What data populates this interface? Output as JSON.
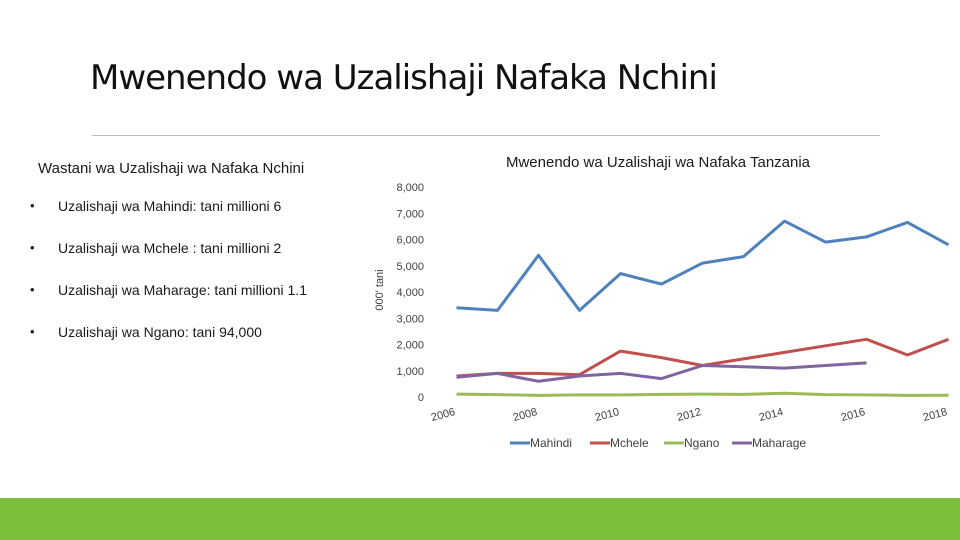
{
  "page": {
    "title": "Mwenendo wa Uzalishaji Nafaka Nchini",
    "left_heading": "Wastani wa Uzalishaji wa Nafaka Nchini",
    "bullets": [
      "Uzalishaji wa Mahindi:  tani millioni 6",
      "Uzalishaji wa Mchele : tani millioni 2",
      "Uzalishaji wa Maharage: tani millioni 1.1",
      "Uzalishaji wa Ngano: tani 94,000"
    ],
    "bullet_glyph": "•"
  },
  "colors": {
    "Mahindi": "#4f81bd",
    "Mchele": "#c0504d",
    "Ngano": "#9bbb59",
    "Maharage": "#8064a2",
    "footer": "#7bbf3a"
  },
  "chart_data": {
    "type": "line",
    "title": "Mwenendo wa Uzalishaji wa Nafaka Tanzania",
    "ylabel": "000' tani",
    "xlabel": "",
    "ylim": [
      0,
      8000
    ],
    "yticks": [
      0,
      1000,
      2000,
      3000,
      4000,
      5000,
      6000,
      7000,
      8000
    ],
    "ytick_labels": [
      "0",
      "1,000",
      "2,000",
      "3,000",
      "4,000",
      "5,000",
      "6,000",
      "7,000",
      "8,000"
    ],
    "xlim": [
      2006,
      2018
    ],
    "xticks": [
      2006,
      2008,
      2010,
      2012,
      2014,
      2016,
      2018
    ],
    "xtick_labels": [
      "2006",
      "2008",
      "2010",
      "2012",
      "2014",
      "2016",
      "2018"
    ],
    "grid": false,
    "legend": "bottom",
    "series": [
      {
        "name": "Mahindi",
        "x": [
          2006.5,
          2007.5,
          2008.5,
          2009.5,
          2010.5,
          2011.5,
          2012.5,
          2013.5,
          2014.5,
          2015.5,
          2016.5,
          2017.5,
          2018.5
        ],
        "values": [
          3400,
          3300,
          5400,
          3300,
          4700,
          4300,
          5100,
          5350,
          6700,
          5900,
          6100,
          6650,
          5800
        ]
      },
      {
        "name": "Mchele",
        "x": [
          2006.5,
          2007.5,
          2008.5,
          2009.5,
          2010.5,
          2011.5,
          2012.5,
          2013.5,
          2014.5,
          2015.5,
          2016.5,
          2017.5,
          2018.5
        ],
        "values": [
          800,
          900,
          900,
          850,
          1750,
          1500,
          1200,
          1450,
          1700,
          1950,
          2200,
          1600,
          2200
        ]
      },
      {
        "name": "Ngano",
        "x": [
          2006.5,
          2007.5,
          2008.5,
          2009.5,
          2010.5,
          2011.5,
          2012.5,
          2013.5,
          2014.5,
          2015.5,
          2016.5,
          2017.5,
          2018.5
        ],
        "values": [
          110,
          90,
          60,
          80,
          80,
          100,
          110,
          100,
          140,
          90,
          80,
          60,
          70
        ]
      },
      {
        "name": "Maharage",
        "x": [
          2006.5,
          2007.5,
          2008.5,
          2009.5,
          2010.5,
          2011.5,
          2012.5,
          2013.5,
          2014.5,
          2015.5,
          2016.5
        ],
        "values": [
          750,
          900,
          600,
          800,
          900,
          700,
          1200,
          1150,
          1100,
          1200,
          1300
        ]
      }
    ]
  }
}
